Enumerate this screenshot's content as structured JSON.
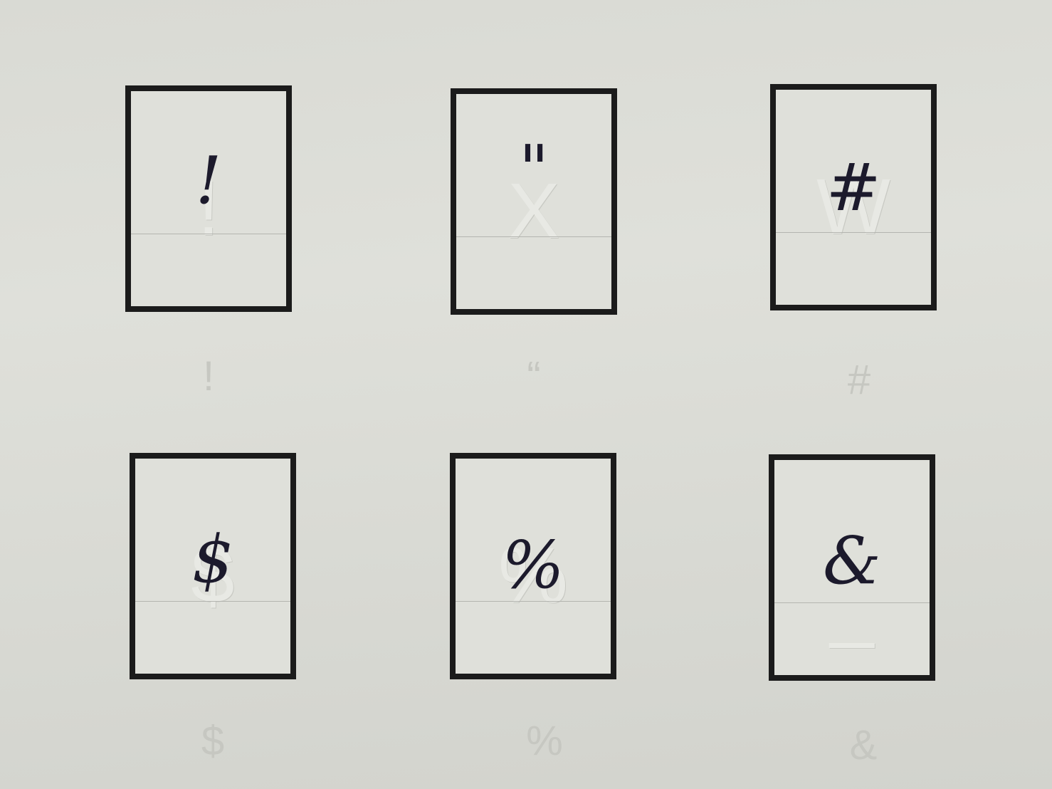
{
  "cards": [
    {
      "handwritten": "!",
      "guide": "!",
      "emboss": "!"
    },
    {
      "handwritten": "\"",
      "guide": "“",
      "emboss": "X"
    },
    {
      "handwritten": "#",
      "guide": "#",
      "emboss": "W"
    },
    {
      "handwritten": "$",
      "guide": "$",
      "emboss": "$"
    },
    {
      "handwritten": "%",
      "guide": "%",
      "emboss": "%"
    },
    {
      "handwritten": "&",
      "guide": "&",
      "emboss": "_"
    }
  ]
}
